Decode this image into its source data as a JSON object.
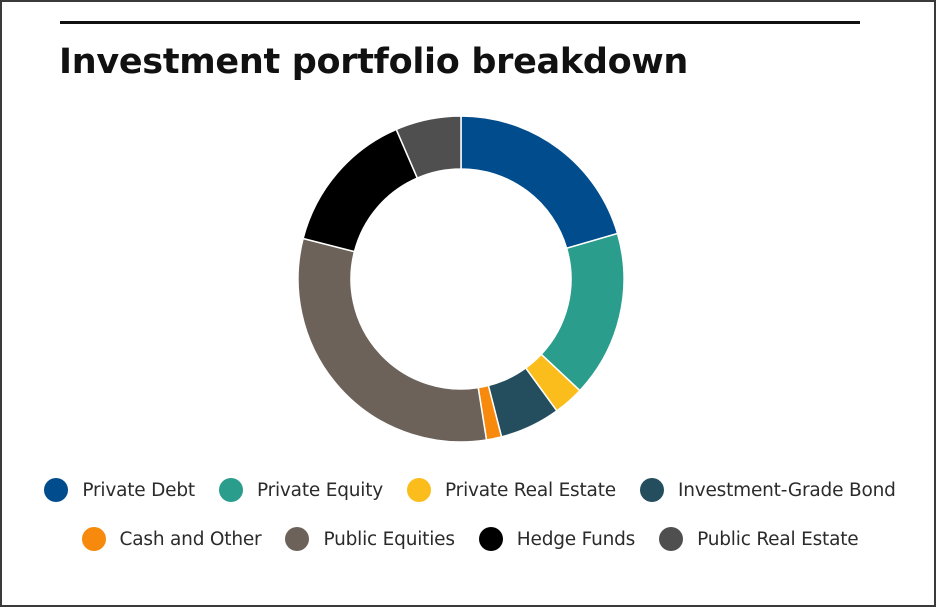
{
  "chart_data": {
    "type": "pie",
    "donut": true,
    "title": "Investment portfolio breakdown",
    "legend_position": "bottom",
    "slices": [
      {
        "label": "Private Debt",
        "value": 20.5,
        "color": "#004c8c"
      },
      {
        "label": "Private Equity",
        "value": 16.5,
        "color": "#2a9d8c"
      },
      {
        "label": "Private Real Estate",
        "value": 3.0,
        "color": "#fbbd1c"
      },
      {
        "label": "Investment-Grade Bond",
        "value": 6.0,
        "color": "#244e5e"
      },
      {
        "label": "Cash and Other",
        "value": 1.5,
        "color": "#f7890c"
      },
      {
        "label": "Public Equities",
        "value": 31.5,
        "color": "#6c6259"
      },
      {
        "label": "Hedge Funds",
        "value": 14.5,
        "color": "#000000"
      },
      {
        "label": "Public Real Estate",
        "value": 6.5,
        "color": "#4f4f4f"
      }
    ]
  },
  "legend_rows": [
    [
      {
        "label": "Private Debt",
        "color": "#004c8c"
      },
      {
        "label": "Private Equity",
        "color": "#2a9d8c"
      },
      {
        "label": "Private Real Estate",
        "color": "#fbbd1c"
      },
      {
        "label": "Investment-Grade Bond",
        "color": "#244e5e"
      }
    ],
    [
      {
        "label": "Cash and Other",
        "color": "#f7890c"
      },
      {
        "label": "Public Equities",
        "color": "#6c6259"
      },
      {
        "label": "Hedge Funds",
        "color": "#000000"
      },
      {
        "label": "Public Real Estate",
        "color": "#4f4f4f"
      }
    ]
  ]
}
